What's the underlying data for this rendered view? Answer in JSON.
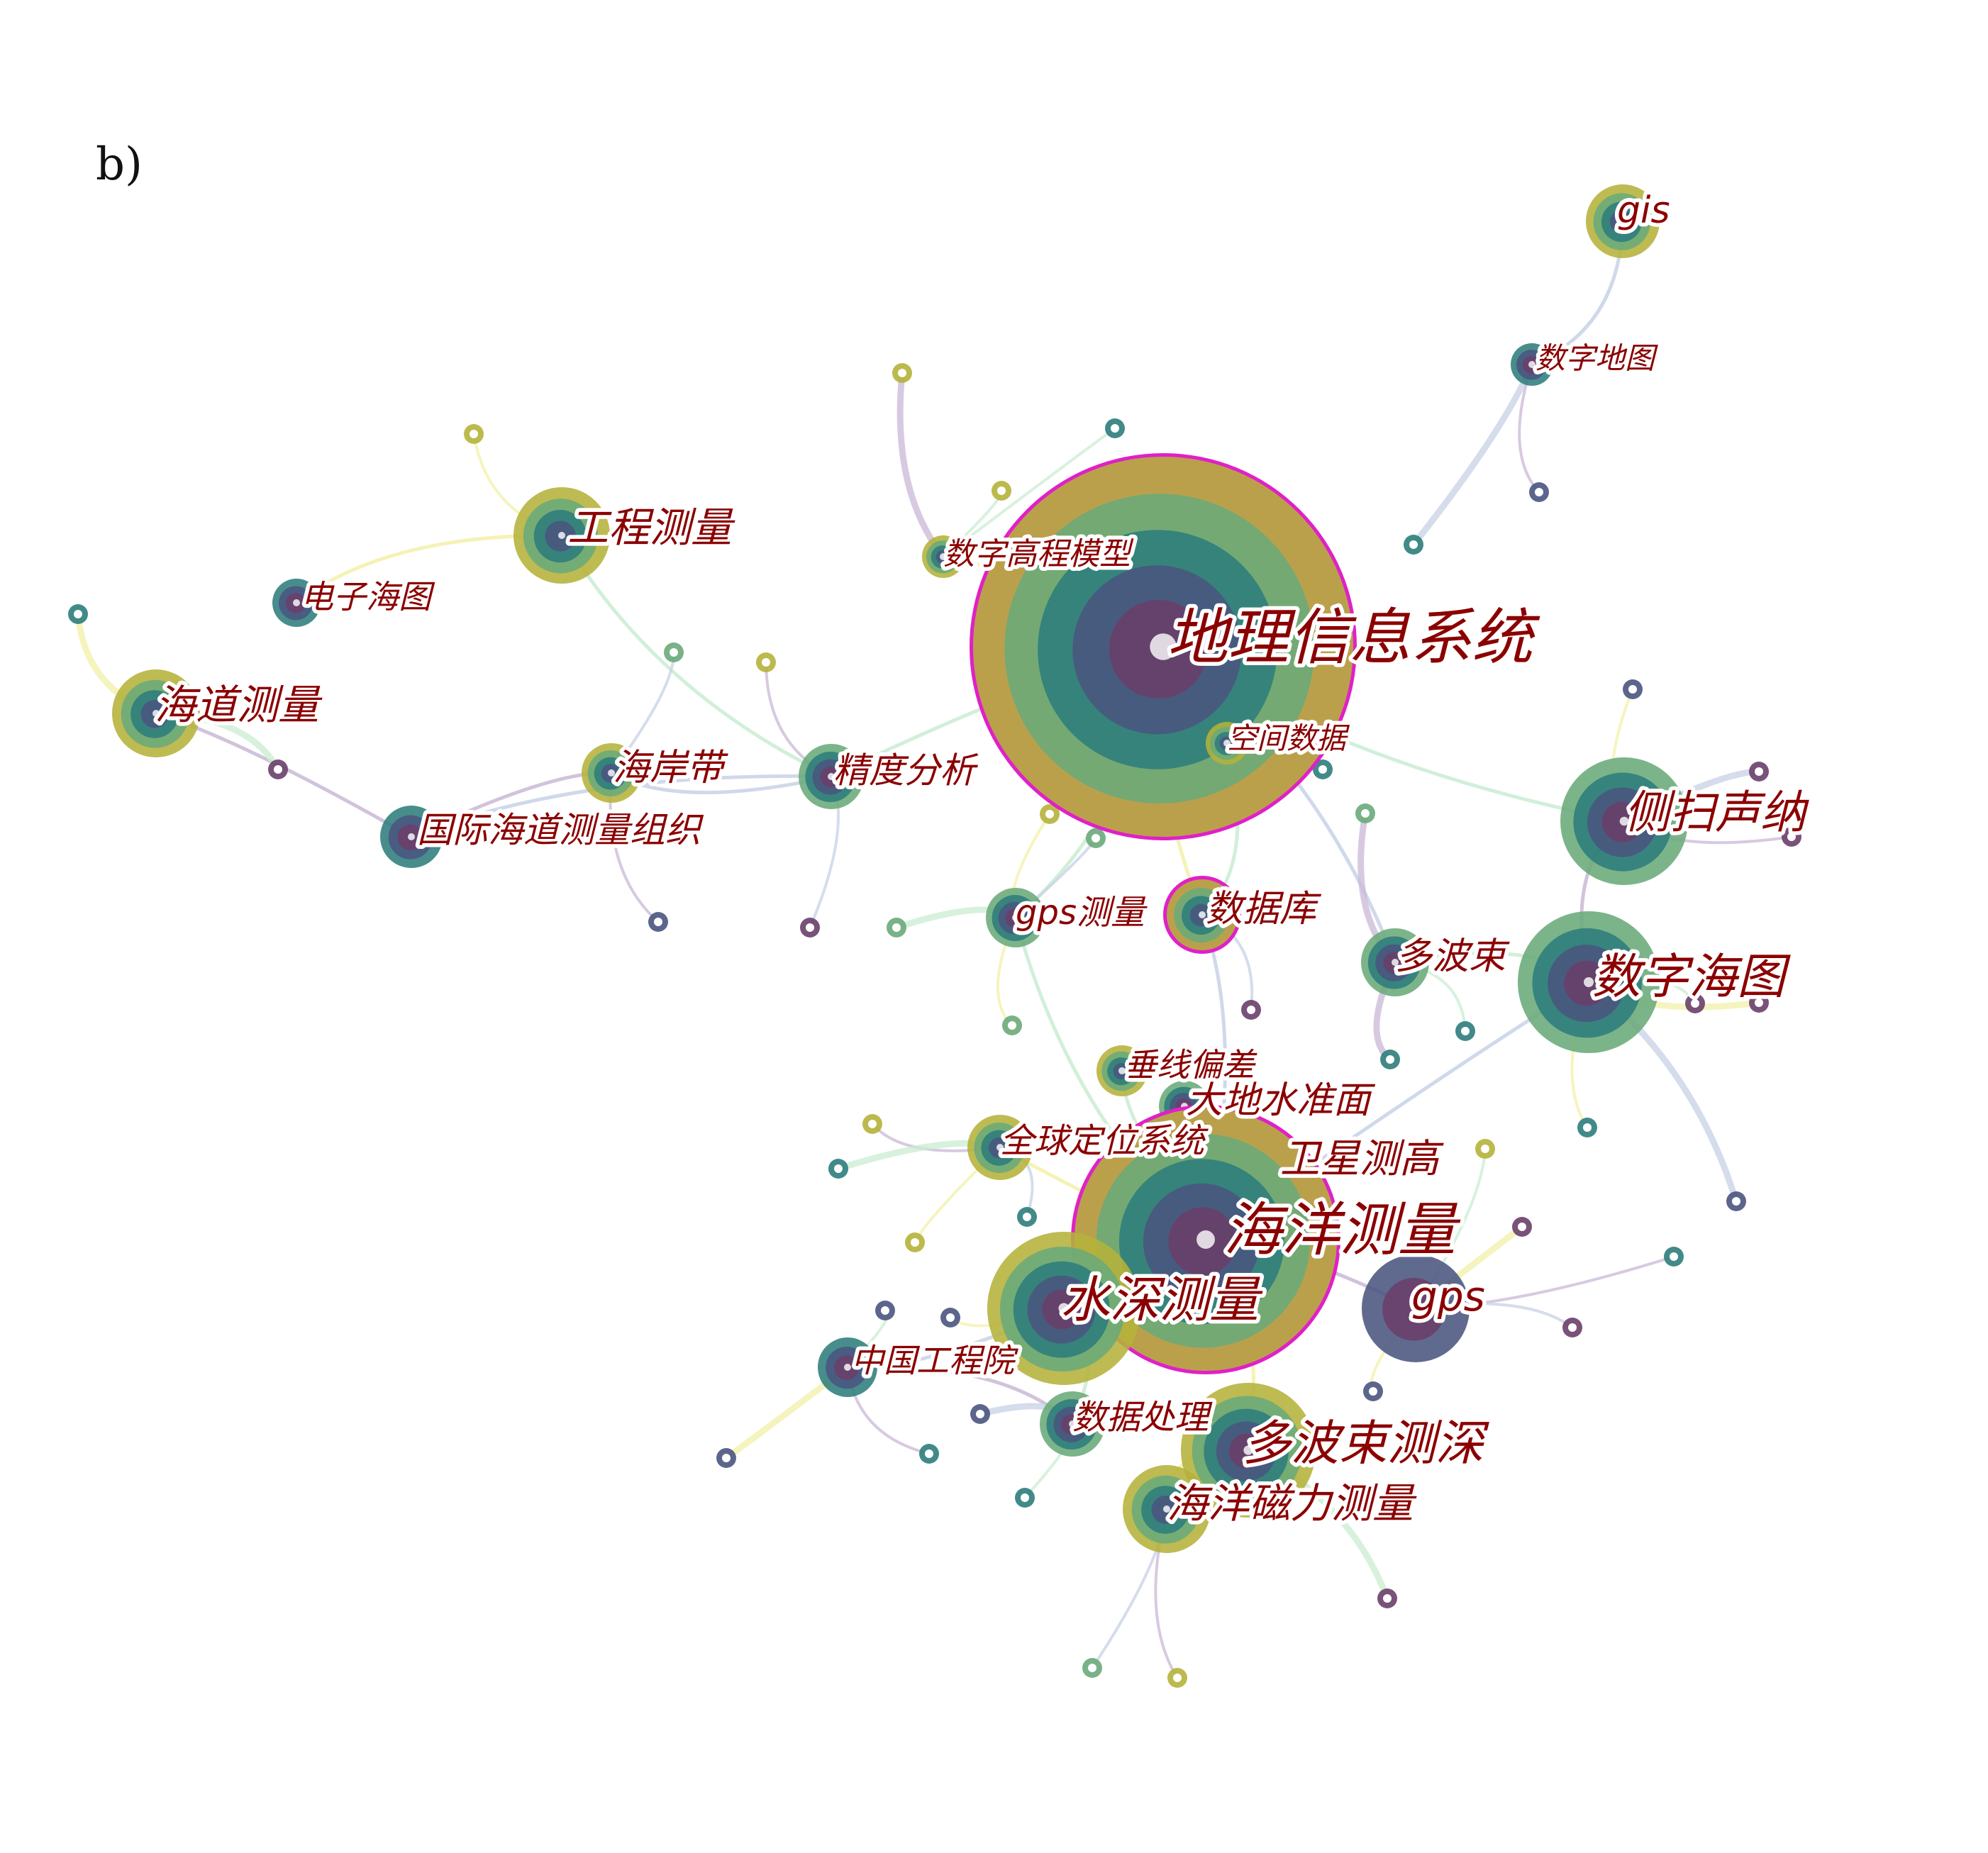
{
  "panel_label": "b)",
  "colors": {
    "label_text": "#8b0000",
    "olive": "#b5b23a",
    "green": "#6aaa7a",
    "teal": "#2e7d7c",
    "navy": "#4a5580",
    "purple": "#6a3f6a",
    "magenta_ring": "#e020c8",
    "link_purple": "#c9b8d6",
    "link_green": "#c9ecd2",
    "link_yellow": "#f3f0a8",
    "link_blue": "#c7d2e6"
  },
  "keywords": [
    {
      "id": "gis",
      "label": "gis"
    },
    {
      "id": "digital-map",
      "label": "数字地图"
    },
    {
      "id": "engineering-survey",
      "label": "工程测量"
    },
    {
      "id": "dem",
      "label": "数字高程模型"
    },
    {
      "id": "electronic-chart",
      "label": "电子海图"
    },
    {
      "id": "channel-survey",
      "label": "海道测量"
    },
    {
      "id": "geographic-info-system",
      "label": "地理信息系统"
    },
    {
      "id": "spatial-data",
      "label": "空间数据"
    },
    {
      "id": "coastal-zone",
      "label": "海岸带"
    },
    {
      "id": "accuracy-analysis",
      "label": "精度分析"
    },
    {
      "id": "iho",
      "label": "国际海道测量组织"
    },
    {
      "id": "sidescan-sonar",
      "label": "侧扫声纳"
    },
    {
      "id": "gps-survey",
      "label": "gps测量"
    },
    {
      "id": "database",
      "label": "数据库"
    },
    {
      "id": "multibeam",
      "label": "多波束"
    },
    {
      "id": "digital-chart",
      "label": "数字海图"
    },
    {
      "id": "deflection-vertical",
      "label": "垂线偏差"
    },
    {
      "id": "geoid",
      "label": "大地水准面"
    },
    {
      "id": "global-positioning-system",
      "label": "全球定位系统"
    },
    {
      "id": "satellite-altimetry",
      "label": "卫星测高"
    },
    {
      "id": "marine-survey",
      "label": "海洋测量"
    },
    {
      "id": "bathymetric-survey",
      "label": "水深测量"
    },
    {
      "id": "gps",
      "label": "gps"
    },
    {
      "id": "cae",
      "label": "中国工程院"
    },
    {
      "id": "data-processing",
      "label": "数据处理"
    },
    {
      "id": "multibeam-sounding",
      "label": "多波束测深"
    },
    {
      "id": "marine-magnetic-survey",
      "label": "海洋磁力测量"
    }
  ]
}
